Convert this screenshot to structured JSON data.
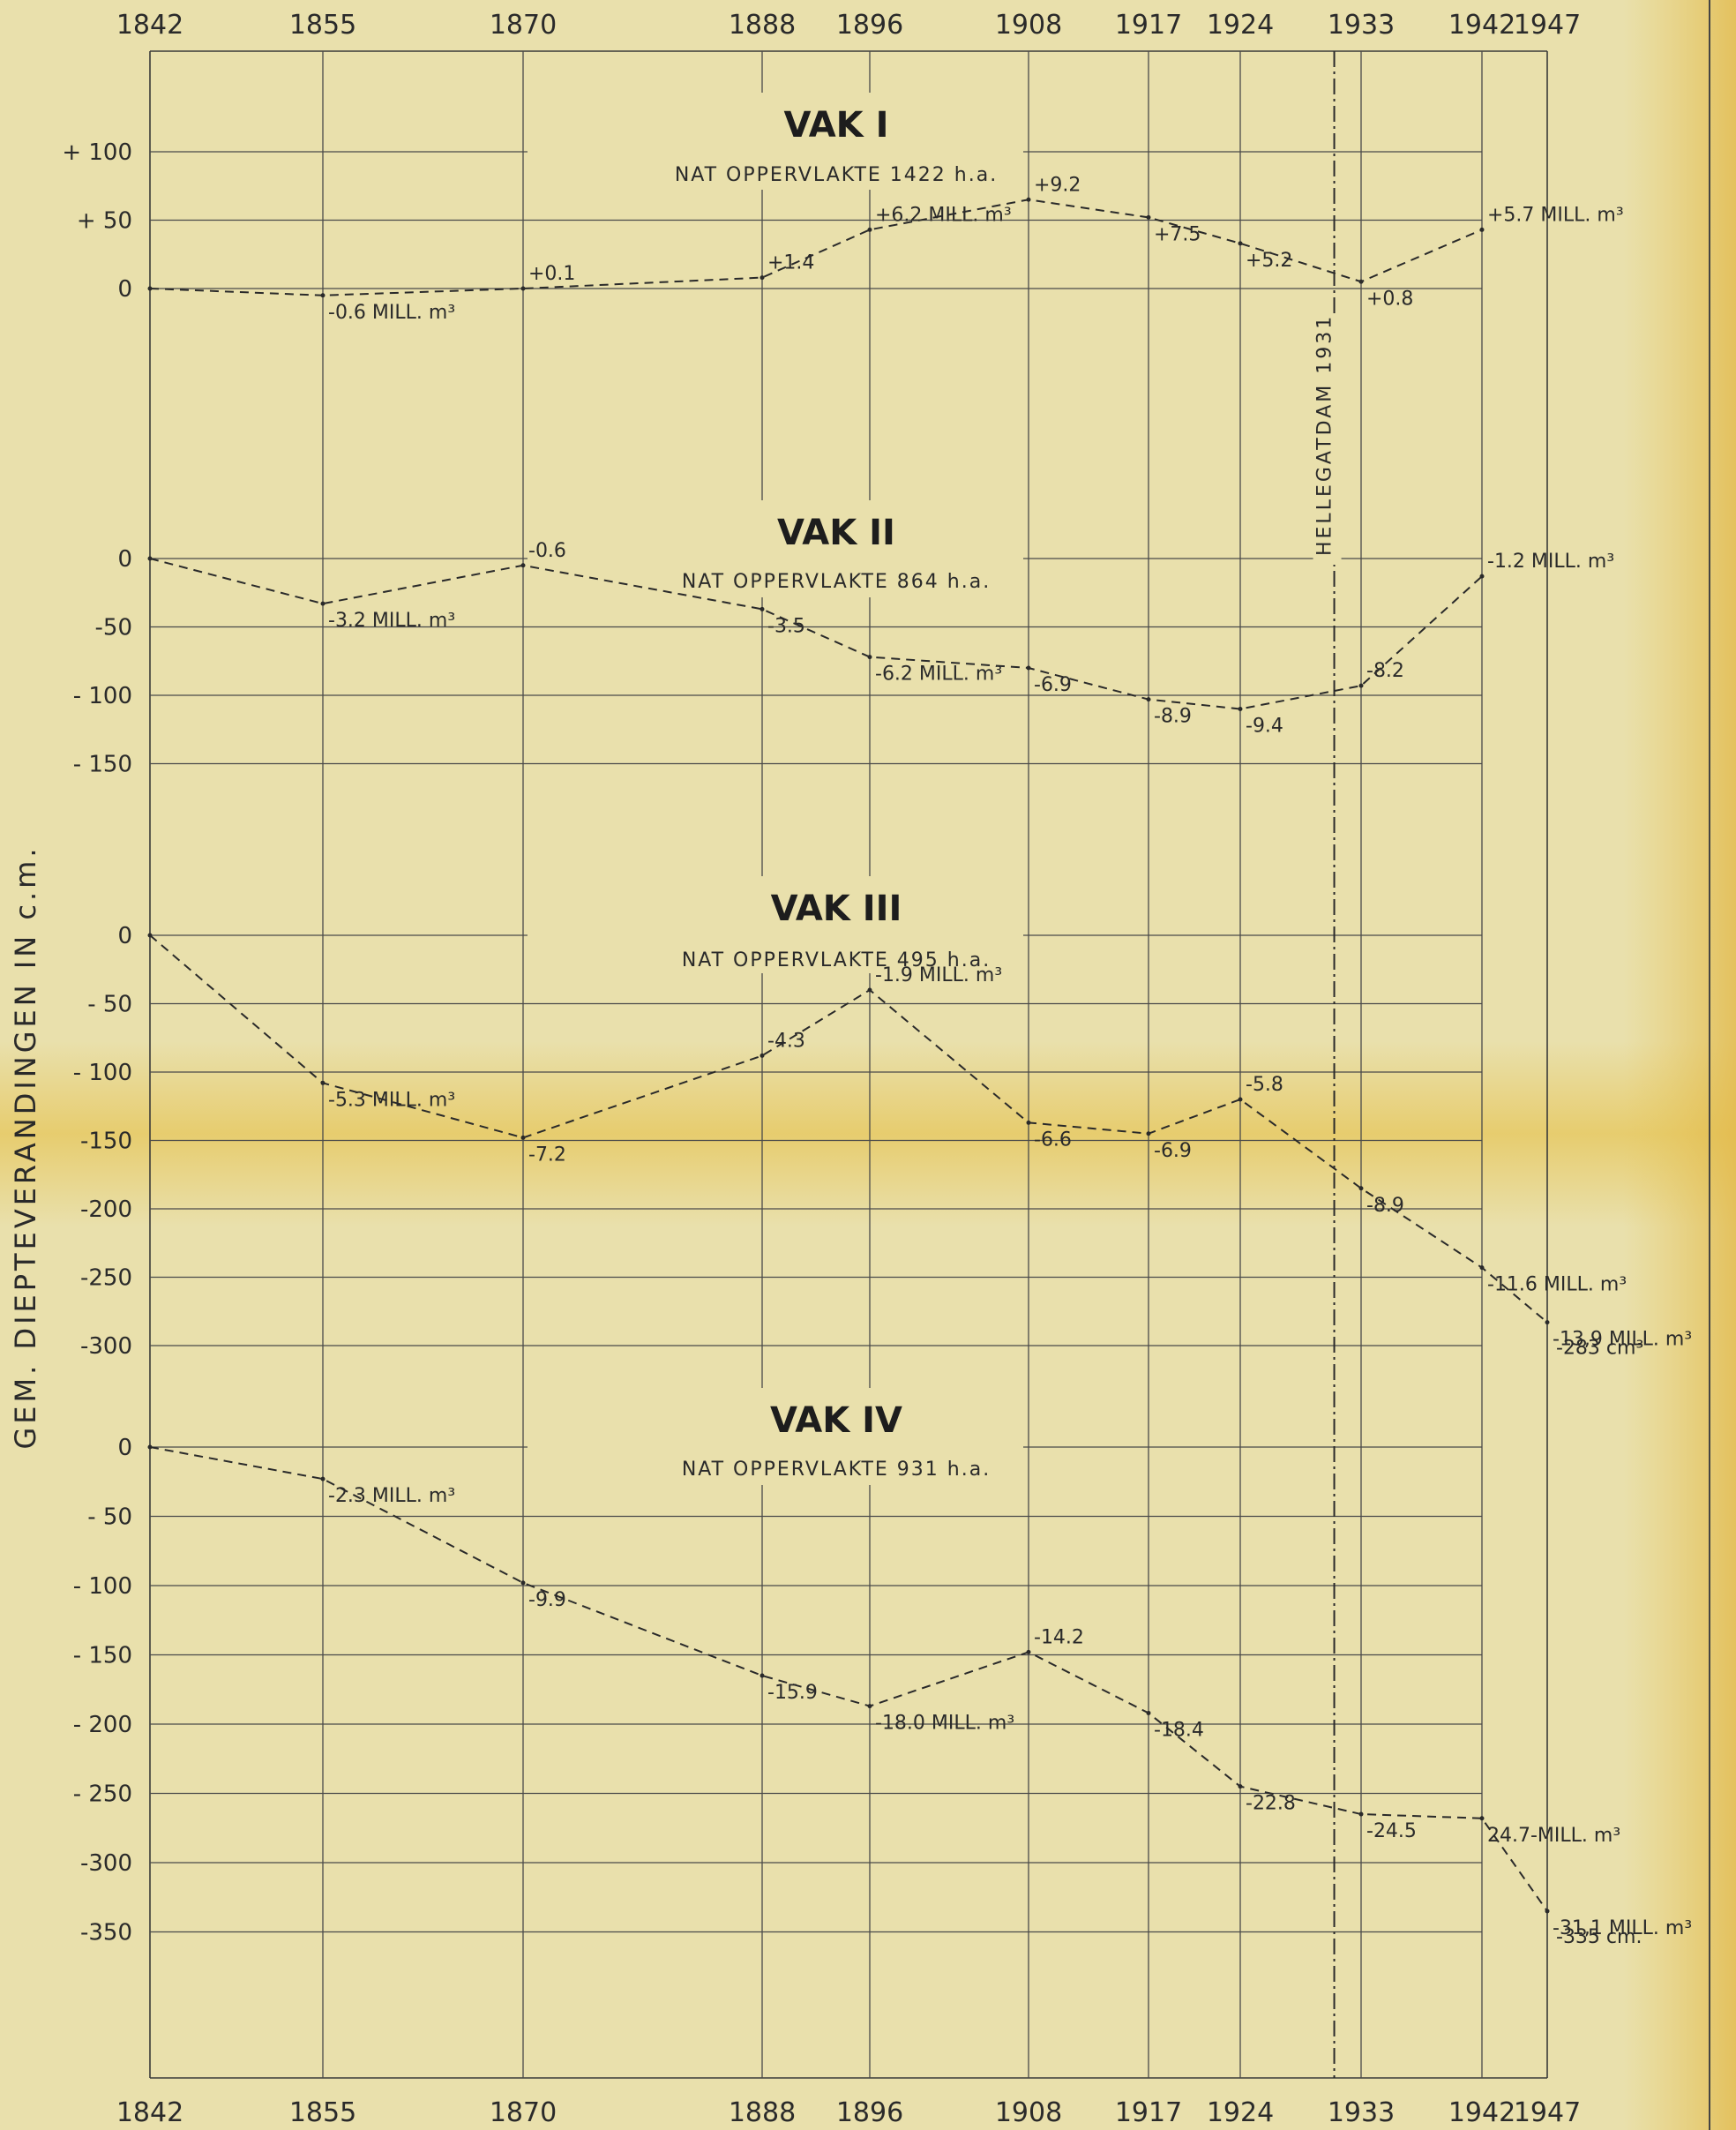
{
  "chart_data": {
    "type": "line",
    "ylabel": "GEM. DIEPTEVERANDINGEN IN c.m.",
    "x_years": [
      1842,
      1855,
      1870,
      1888,
      1896,
      1908,
      1917,
      1924,
      1933,
      1942,
      1947
    ],
    "reference_line": {
      "year": 1931,
      "label": "HELLEGATDAM 1931"
    },
    "panels": [
      {
        "title": "VAK I",
        "subtitle": "NAT OPPERVLAKTE 1422 h.a.",
        "yticks": [
          100,
          50,
          0
        ],
        "ytick_labels": [
          "+ 100",
          "+ 50",
          "0"
        ],
        "series": [
          {
            "x": 1842,
            "y": 0,
            "label": ""
          },
          {
            "x": 1855,
            "y": -5,
            "label": "-0.6 MILL. m³"
          },
          {
            "x": 1870,
            "y": 0,
            "label": "+0.1"
          },
          {
            "x": 1888,
            "y": 8,
            "label": "+1.4"
          },
          {
            "x": 1896,
            "y": 43,
            "label": "+6.2 MILL. m³"
          },
          {
            "x": 1908,
            "y": 65,
            "label": "+9.2"
          },
          {
            "x": 1917,
            "y": 52,
            "label": "+7.5"
          },
          {
            "x": 1924,
            "y": 33,
            "label": "+5.2"
          },
          {
            "x": 1933,
            "y": 5,
            "label": "+0.8"
          },
          {
            "x": 1942,
            "y": 43,
            "label": "+5.7 MILL. m³"
          }
        ]
      },
      {
        "title": "VAK II",
        "subtitle": "NAT OPPERVLAKTE 864 h.a.",
        "yticks": [
          0,
          -50,
          -100,
          -150
        ],
        "ytick_labels": [
          "0",
          "-50",
          "- 100",
          "- 150"
        ],
        "series": [
          {
            "x": 1842,
            "y": 0,
            "label": ""
          },
          {
            "x": 1855,
            "y": -33,
            "label": "-3.2 MILL. m³"
          },
          {
            "x": 1870,
            "y": -5,
            "label": "-0.6"
          },
          {
            "x": 1888,
            "y": -37,
            "label": "-3.5"
          },
          {
            "x": 1896,
            "y": -72,
            "label": "-6.2 MILL. m³"
          },
          {
            "x": 1908,
            "y": -80,
            "label": "-6.9"
          },
          {
            "x": 1917,
            "y": -103,
            "label": "-8.9"
          },
          {
            "x": 1924,
            "y": -110,
            "label": "-9.4"
          },
          {
            "x": 1933,
            "y": -93,
            "label": "-8.2"
          },
          {
            "x": 1942,
            "y": -13,
            "label": "-1.2 MILL. m³"
          }
        ]
      },
      {
        "title": "VAK III",
        "subtitle": "NAT OPPERVLAKTE 495 h.a.",
        "yticks": [
          0,
          -50,
          -100,
          -150,
          -200,
          -250,
          -300
        ],
        "ytick_labels": [
          "0",
          "- 50",
          "- 100",
          "-150",
          "-200",
          "-250",
          "-300"
        ],
        "series": [
          {
            "x": 1842,
            "y": 0,
            "label": ""
          },
          {
            "x": 1855,
            "y": -108,
            "label": "-5.3 MILL. m³"
          },
          {
            "x": 1870,
            "y": -148,
            "label": "-7.2"
          },
          {
            "x": 1888,
            "y": -88,
            "label": "-4.3"
          },
          {
            "x": 1896,
            "y": -40,
            "label": "-1.9 MILL. m³"
          },
          {
            "x": 1908,
            "y": -137,
            "label": "-6.6"
          },
          {
            "x": 1917,
            "y": -145,
            "label": "-6.9"
          },
          {
            "x": 1924,
            "y": -120,
            "label": "-5.8"
          },
          {
            "x": 1933,
            "y": -185,
            "label": "-8.9"
          },
          {
            "x": 1942,
            "y": -243,
            "label": "-11.6 MILL. m³"
          },
          {
            "x": 1947,
            "y": -283,
            "label": "-13,9 MILL. m³"
          }
        ],
        "end_note": "-283 cm³"
      },
      {
        "title": "VAK IV",
        "subtitle": "NAT OPPERVLAKTE 931 h.a.",
        "yticks": [
          0,
          -50,
          -100,
          -150,
          -200,
          -250,
          -300,
          -350
        ],
        "ytick_labels": [
          "0",
          "- 50",
          "- 100",
          "- 150",
          "- 200",
          "- 250",
          "-300",
          "-350"
        ],
        "series": [
          {
            "x": 1842,
            "y": 0,
            "label": ""
          },
          {
            "x": 1855,
            "y": -23,
            "label": "-2.3 MILL. m³"
          },
          {
            "x": 1870,
            "y": -98,
            "label": "-9.9"
          },
          {
            "x": 1888,
            "y": -165,
            "label": "-15.9"
          },
          {
            "x": 1896,
            "y": -187,
            "label": "-18.0 MILL. m³"
          },
          {
            "x": 1908,
            "y": -148,
            "label": "-14.2"
          },
          {
            "x": 1917,
            "y": -192,
            "label": "-18.4"
          },
          {
            "x": 1924,
            "y": -245,
            "label": "-22.8"
          },
          {
            "x": 1933,
            "y": -265,
            "label": "-24.5"
          },
          {
            "x": 1942,
            "y": -268,
            "label": "24.7-MILL. m³"
          },
          {
            "x": 1947,
            "y": -335,
            "label": "-31,1 MILL. m³"
          }
        ],
        "end_note": "-335 cm."
      }
    ]
  }
}
